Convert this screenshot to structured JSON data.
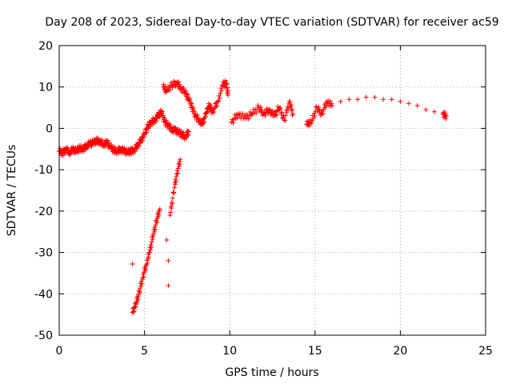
{
  "chart_data": {
    "type": "scatter",
    "title": "Day 208 of 2023, Sidereal Day-to-day VTEC variation (SDTVAR) for receiver ac59",
    "xlabel": "GPS time / hours",
    "ylabel": "SDTVAR / TECUs",
    "xlim": [
      0,
      25
    ],
    "ylim": [
      -50,
      20
    ],
    "xticks": [
      "0",
      "5",
      "10",
      "15",
      "20",
      "25"
    ],
    "yticks": [
      "20",
      "10",
      "0",
      "-10",
      "-20",
      "-30",
      "-40",
      "-50"
    ],
    "grid": true,
    "marker": "+",
    "color": "#ff0000",
    "series": [
      {
        "name": "SDTVAR",
        "points": [
          [
            0.0,
            -5.5
          ],
          [
            0.2,
            -6.0
          ],
          [
            0.4,
            -5.0
          ],
          [
            0.6,
            -5.8
          ],
          [
            0.8,
            -5.2
          ],
          [
            1.0,
            -5.5
          ],
          [
            1.2,
            -4.8
          ],
          [
            1.4,
            -5.0
          ],
          [
            1.6,
            -4.2
          ],
          [
            1.8,
            -3.8
          ],
          [
            2.0,
            -3.5
          ],
          [
            2.2,
            -3.0
          ],
          [
            2.4,
            -3.2
          ],
          [
            2.6,
            -3.8
          ],
          [
            2.8,
            -3.5
          ],
          [
            3.0,
            -4.5
          ],
          [
            3.2,
            -5.2
          ],
          [
            3.4,
            -5.5
          ],
          [
            3.6,
            -5.0
          ],
          [
            3.8,
            -5.5
          ],
          [
            4.0,
            -5.8
          ],
          [
            4.2,
            -5.5
          ],
          [
            4.4,
            -5.2
          ],
          [
            4.6,
            -4.0
          ],
          [
            4.8,
            -3.0
          ],
          [
            5.0,
            -1.5
          ],
          [
            5.2,
            0.5
          ],
          [
            5.4,
            1.5
          ],
          [
            5.6,
            2.0
          ],
          [
            5.8,
            3.0
          ],
          [
            6.0,
            4.0
          ],
          [
            6.2,
            1.5
          ],
          [
            6.4,
            0.8
          ],
          [
            6.6,
            -0.2
          ],
          [
            6.8,
            -0.5
          ],
          [
            7.0,
            -1.0
          ],
          [
            7.2,
            -1.5
          ],
          [
            7.4,
            -2.0
          ],
          [
            7.6,
            -0.8
          ],
          [
            6.1,
            10.0
          ],
          [
            6.3,
            9.0
          ],
          [
            6.6,
            10.5
          ],
          [
            6.9,
            11.0
          ],
          [
            7.1,
            10.0
          ],
          [
            7.4,
            8.5
          ],
          [
            7.6,
            7.0
          ],
          [
            7.8,
            5.0
          ],
          [
            8.0,
            3.0
          ],
          [
            8.2,
            2.0
          ],
          [
            8.4,
            1.0
          ],
          [
            8.6,
            3.5
          ],
          [
            8.8,
            5.5
          ],
          [
            9.0,
            4.0
          ],
          [
            9.3,
            6.5
          ],
          [
            9.6,
            10.5
          ],
          [
            9.8,
            11.0
          ],
          [
            9.9,
            8.0
          ],
          [
            10.1,
            1.5
          ],
          [
            10.5,
            3.5
          ],
          [
            10.9,
            2.5
          ],
          [
            11.3,
            3.5
          ],
          [
            11.7,
            5.0
          ],
          [
            12.0,
            3.5
          ],
          [
            12.3,
            4.5
          ],
          [
            12.6,
            3.0
          ],
          [
            12.9,
            5.0
          ],
          [
            13.2,
            2.0
          ],
          [
            13.5,
            6.5
          ],
          [
            13.7,
            3.5
          ],
          [
            14.5,
            1.0
          ],
          [
            14.8,
            1.5
          ],
          [
            15.1,
            5.0
          ],
          [
            15.4,
            3.5
          ],
          [
            15.7,
            6.5
          ],
          [
            16.0,
            5.5
          ],
          [
            16.5,
            6.5
          ],
          [
            17.0,
            7.0
          ],
          [
            17.5,
            7.0
          ],
          [
            18.0,
            7.5
          ],
          [
            18.5,
            7.5
          ],
          [
            19.0,
            7.0
          ],
          [
            19.5,
            7.0
          ],
          [
            20.0,
            6.5
          ],
          [
            20.5,
            6.0
          ],
          [
            21.0,
            5.5
          ],
          [
            21.5,
            4.5
          ],
          [
            22.0,
            4.0
          ],
          [
            22.5,
            3.5
          ],
          [
            22.7,
            3.0
          ],
          [
            4.3,
            -44.5
          ],
          [
            4.5,
            -42.5
          ],
          [
            4.7,
            -39.5
          ],
          [
            4.9,
            -36.0
          ],
          [
            5.1,
            -33.0
          ],
          [
            5.3,
            -30.0
          ],
          [
            5.5,
            -26.0
          ],
          [
            5.7,
            -22.5
          ],
          [
            5.9,
            -19.5
          ],
          [
            4.3,
            -32.8
          ],
          [
            6.3,
            -27.0
          ],
          [
            6.5,
            -21.0
          ],
          [
            6.7,
            -15.5
          ],
          [
            6.9,
            -11.0
          ],
          [
            7.1,
            -7.5
          ],
          [
            6.4,
            -32.0
          ],
          [
            6.4,
            -38.0
          ]
        ]
      }
    ]
  }
}
